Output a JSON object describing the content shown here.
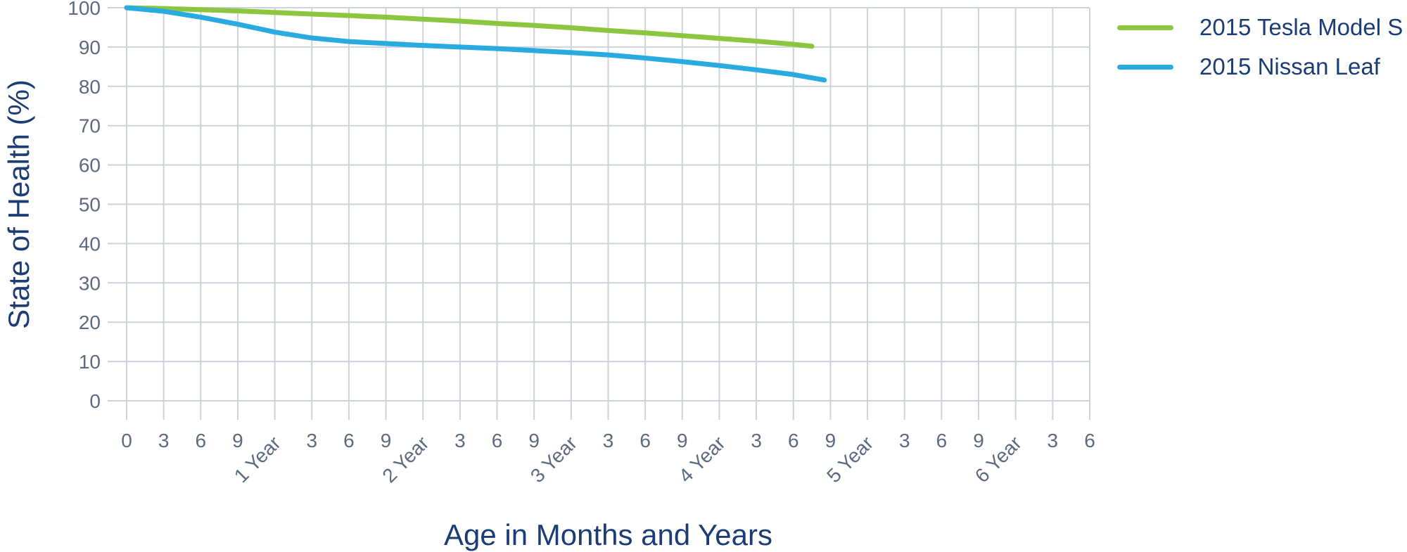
{
  "page": {
    "background": "#ffffff"
  },
  "legend": {
    "items": [
      {
        "label": "2015 Tesla Model S",
        "color": "#8CC63F"
      },
      {
        "label": "2015 Nissan Leaf",
        "color": "#29ABE2"
      }
    ]
  },
  "chart_data": {
    "type": "line",
    "title": "",
    "xlabel": "Age in Months and Years",
    "ylabel": "State of Health (%)",
    "x_unit": "months",
    "xlim": [
      0,
      78
    ],
    "ylim": [
      0,
      100
    ],
    "grid": true,
    "legend_position": "top-right",
    "colors": {
      "grid": "#CDD2DB",
      "tick_label": "#5C6B80",
      "axis_title": "#1B3C74",
      "legend_text": "#1B3C74"
    },
    "yticks": [
      0,
      10,
      20,
      30,
      40,
      50,
      60,
      70,
      80,
      90,
      100
    ],
    "xticks": [
      {
        "m": 0,
        "label": "0",
        "year": false
      },
      {
        "m": 3,
        "label": "3",
        "year": false
      },
      {
        "m": 6,
        "label": "6",
        "year": false
      },
      {
        "m": 9,
        "label": "9",
        "year": false
      },
      {
        "m": 12,
        "label": "1 Year",
        "year": true
      },
      {
        "m": 15,
        "label": "3",
        "year": false
      },
      {
        "m": 18,
        "label": "6",
        "year": false
      },
      {
        "m": 21,
        "label": "9",
        "year": false
      },
      {
        "m": 24,
        "label": "2 Year",
        "year": true
      },
      {
        "m": 27,
        "label": "3",
        "year": false
      },
      {
        "m": 30,
        "label": "6",
        "year": false
      },
      {
        "m": 33,
        "label": "9",
        "year": false
      },
      {
        "m": 36,
        "label": "3 Year",
        "year": true
      },
      {
        "m": 39,
        "label": "3",
        "year": false
      },
      {
        "m": 42,
        "label": "6",
        "year": false
      },
      {
        "m": 45,
        "label": "9",
        "year": false
      },
      {
        "m": 48,
        "label": "4 Year",
        "year": true
      },
      {
        "m": 51,
        "label": "3",
        "year": false
      },
      {
        "m": 54,
        "label": "6",
        "year": false
      },
      {
        "m": 57,
        "label": "9",
        "year": false
      },
      {
        "m": 60,
        "label": "5 Year",
        "year": true
      },
      {
        "m": 63,
        "label": "3",
        "year": false
      },
      {
        "m": 66,
        "label": "6",
        "year": false
      },
      {
        "m": 69,
        "label": "9",
        "year": false
      },
      {
        "m": 72,
        "label": "6 Year",
        "year": true
      },
      {
        "m": 75,
        "label": "3",
        "year": false
      },
      {
        "m": 78,
        "label": "6",
        "year": false
      }
    ],
    "series": [
      {
        "name": "2015 Tesla Model S",
        "color": "#8CC63F",
        "points": [
          [
            0,
            100
          ],
          [
            3,
            99.8
          ],
          [
            6,
            99.5
          ],
          [
            9,
            99.2
          ],
          [
            12,
            98.8
          ],
          [
            15,
            98.4
          ],
          [
            18,
            98.0
          ],
          [
            21,
            97.6
          ],
          [
            24,
            97.1
          ],
          [
            27,
            96.6
          ],
          [
            30,
            96.0
          ],
          [
            33,
            95.5
          ],
          [
            36,
            94.9
          ],
          [
            39,
            94.2
          ],
          [
            42,
            93.6
          ],
          [
            45,
            92.9
          ],
          [
            48,
            92.2
          ],
          [
            51,
            91.5
          ],
          [
            54,
            90.7
          ],
          [
            55.5,
            90.2
          ]
        ]
      },
      {
        "name": "2015 Nissan Leaf",
        "color": "#29ABE2",
        "points": [
          [
            0,
            100
          ],
          [
            3,
            99.1
          ],
          [
            6,
            97.6
          ],
          [
            9,
            95.8
          ],
          [
            12,
            93.8
          ],
          [
            15,
            92.3
          ],
          [
            18,
            91.4
          ],
          [
            21,
            90.9
          ],
          [
            24,
            90.4
          ],
          [
            27,
            90.0
          ],
          [
            30,
            89.6
          ],
          [
            33,
            89.1
          ],
          [
            36,
            88.6
          ],
          [
            39,
            88.0
          ],
          [
            42,
            87.2
          ],
          [
            45,
            86.3
          ],
          [
            48,
            85.3
          ],
          [
            51,
            84.2
          ],
          [
            54,
            83.0
          ],
          [
            56.5,
            81.6
          ]
        ]
      }
    ]
  }
}
